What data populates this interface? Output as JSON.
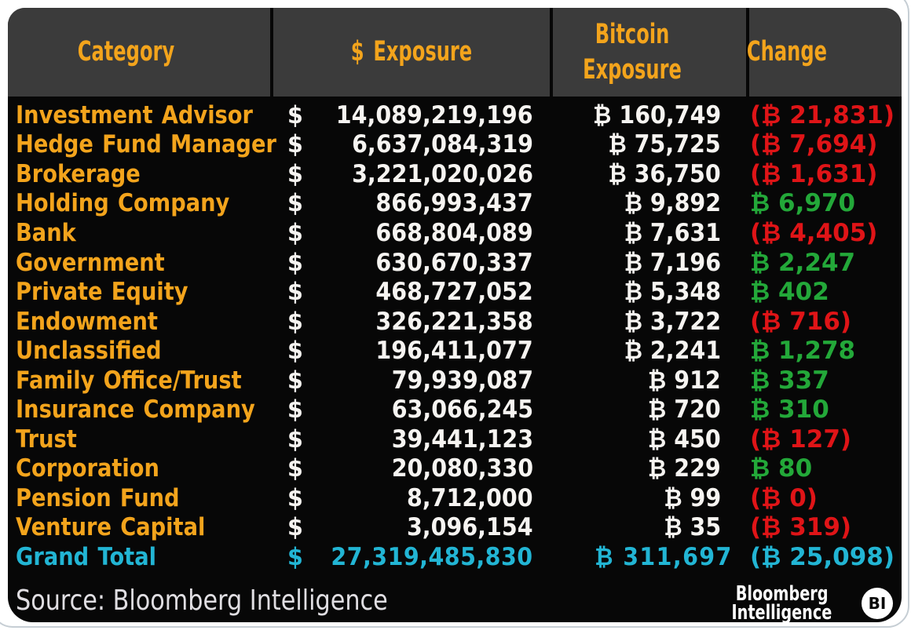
{
  "symbols": {
    "dollar": "$",
    "btc": "₿"
  },
  "colors": {
    "orange": "#f3a41c",
    "red": "#df1417",
    "green": "#23a839",
    "cyan": "#22b5d4",
    "header_bg": "#3b3b3b",
    "panel_bg": "#070707"
  },
  "header": {
    "columns": [
      "Category",
      "$ Exposure",
      "Bitcoin Exposure",
      "Change"
    ]
  },
  "rows": [
    {
      "category": "Investment Advisor",
      "exposure": "14,089,219,196",
      "btc": "160,749",
      "change": "21,831",
      "change_negative": true,
      "is_total": false
    },
    {
      "category": "Hedge Fund Manager",
      "exposure": "6,637,084,319",
      "btc": "75,725",
      "change": "7,694",
      "change_negative": true,
      "is_total": false
    },
    {
      "category": "Brokerage",
      "exposure": "3,221,020,026",
      "btc": "36,750",
      "change": "1,631",
      "change_negative": true,
      "is_total": false
    },
    {
      "category": "Holding Company",
      "exposure": "866,993,437",
      "btc": "9,892",
      "change": "6,970",
      "change_negative": false,
      "is_total": false
    },
    {
      "category": "Bank",
      "exposure": "668,804,089",
      "btc": "7,631",
      "change": "4,405",
      "change_negative": true,
      "is_total": false
    },
    {
      "category": "Government",
      "exposure": "630,670,337",
      "btc": "7,196",
      "change": "2,247",
      "change_negative": false,
      "is_total": false
    },
    {
      "category": "Private Equity",
      "exposure": "468,727,052",
      "btc": "5,348",
      "change": "402",
      "change_negative": false,
      "is_total": false
    },
    {
      "category": "Endowment",
      "exposure": "326,221,358",
      "btc": "3,722",
      "change": "716",
      "change_negative": true,
      "is_total": false
    },
    {
      "category": "Unclassified",
      "exposure": "196,411,077",
      "btc": "2,241",
      "change": "1,278",
      "change_negative": false,
      "is_total": false
    },
    {
      "category": "Family Office/Trust",
      "exposure": "79,939,087",
      "btc": "912",
      "change": "337",
      "change_negative": false,
      "is_total": false
    },
    {
      "category": "Insurance Company",
      "exposure": "63,066,245",
      "btc": "720",
      "change": "310",
      "change_negative": false,
      "is_total": false
    },
    {
      "category": "Trust",
      "exposure": "39,441,123",
      "btc": "450",
      "change": "127",
      "change_negative": true,
      "is_total": false
    },
    {
      "category": "Corporation",
      "exposure": "20,080,330",
      "btc": "229",
      "change": "80",
      "change_negative": false,
      "is_total": false
    },
    {
      "category": "Pension Fund",
      "exposure": "8,712,000",
      "btc": "99",
      "change": "0",
      "change_negative": true,
      "is_total": false
    },
    {
      "category": "Venture Capital",
      "exposure": "3,096,154",
      "btc": "35",
      "change": "319",
      "change_negative": true,
      "is_total": false
    },
    {
      "category": "Grand Total",
      "exposure": "27,319,485,830",
      "btc": "311,697",
      "change": "25,098",
      "change_negative": true,
      "is_total": true
    }
  ],
  "footer": {
    "source": "Source: Bloomberg Intelligence",
    "logo_line1": "Bloomberg",
    "logo_line2": "Intelligence",
    "logo_badge": "BI"
  }
}
